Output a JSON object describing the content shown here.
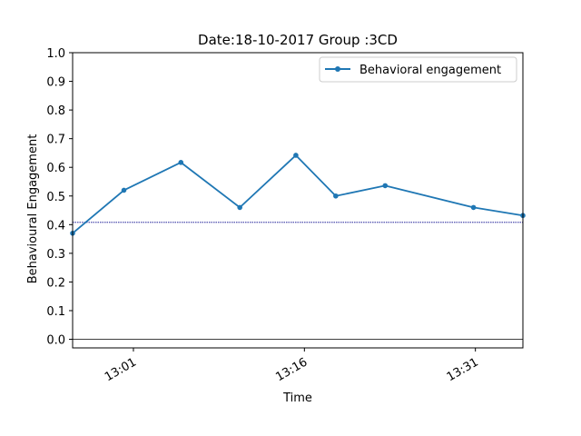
{
  "chart_data": {
    "type": "line",
    "title": "Date:18-10-2017 Group :3CD",
    "xlabel": "Time",
    "ylabel": "Behavioural Engagement",
    "ylim": [
      -0.03,
      1.0
    ],
    "y_ticks": [
      0.0,
      0.1,
      0.2,
      0.3,
      0.4,
      0.5,
      0.6,
      0.7,
      0.8,
      0.9,
      1.0
    ],
    "xlim": [
      "12:55:40",
      "13:35:10"
    ],
    "x_ticks": [
      "13:01",
      "13:16",
      "13:31"
    ],
    "series": [
      {
        "name": "Behavioral engagement",
        "color": "#1f77b4",
        "marker": "circle",
        "x": [
          "12:55:40",
          "13:00:10",
          "13:05:10",
          "13:10:20",
          "13:15:15",
          "13:18:45",
          "13:23:05",
          "13:30:50",
          "13:35:10"
        ],
        "values": [
          0.37,
          0.52,
          0.617,
          0.46,
          0.642,
          0.5,
          0.536,
          0.46,
          0.432
        ]
      }
    ],
    "reference_lines": [
      {
        "y": 0.408,
        "color": "#00008b",
        "style": "dotted"
      },
      {
        "y": 0.0,
        "color": "#000000",
        "style": "solid"
      }
    ],
    "legend": {
      "position": "top-right"
    },
    "grid": false
  }
}
